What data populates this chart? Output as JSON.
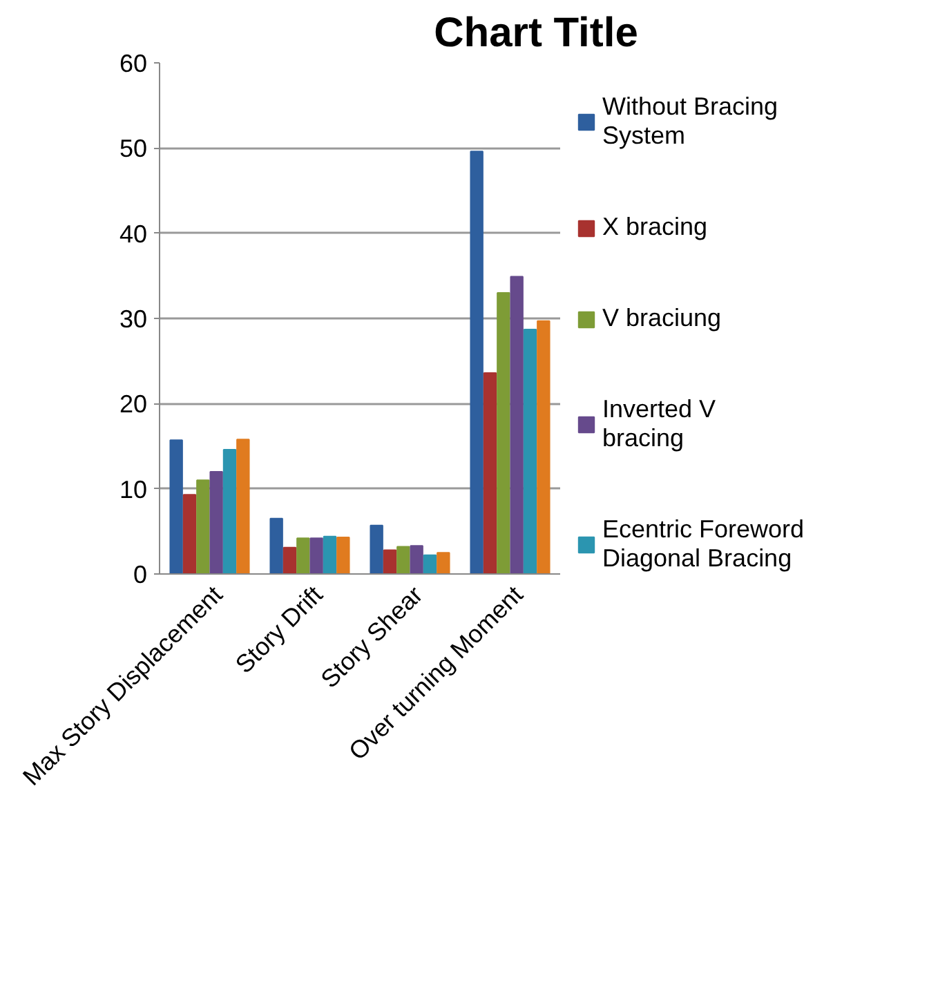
{
  "chart_data": {
    "type": "bar",
    "title": "Chart Title",
    "categories": [
      "Max Story Displacement",
      "Story Drift",
      "Story Shear",
      "Over turning Moment"
    ],
    "series": [
      {
        "name": "Without Bracing System",
        "color": "#2e5f9e",
        "values": [
          15.7,
          6.5,
          5.7,
          49.6
        ]
      },
      {
        "name": "X bracing",
        "color": "#a8322f",
        "values": [
          9.3,
          3.1,
          2.8,
          23.6
        ]
      },
      {
        "name": "V braciung",
        "color": "#7e9c36",
        "values": [
          11.0,
          4.2,
          3.2,
          33.0
        ]
      },
      {
        "name": "Inverted V bracing",
        "color": "#664a8c",
        "values": [
          12.0,
          4.2,
          3.3,
          34.9
        ]
      },
      {
        "name": "Ecentric Foreword Diagonal Bracing",
        "color": "#2b95b0",
        "values": [
          14.6,
          4.4,
          2.2,
          28.7
        ]
      },
      {
        "color": "#e07b1f",
        "values": [
          15.8,
          4.3,
          2.5,
          29.7
        ]
      }
    ],
    "ylim": [
      0,
      60
    ],
    "yticks": [
      0,
      10,
      20,
      30,
      40,
      50,
      60
    ],
    "grid": "y",
    "legend": "right"
  }
}
